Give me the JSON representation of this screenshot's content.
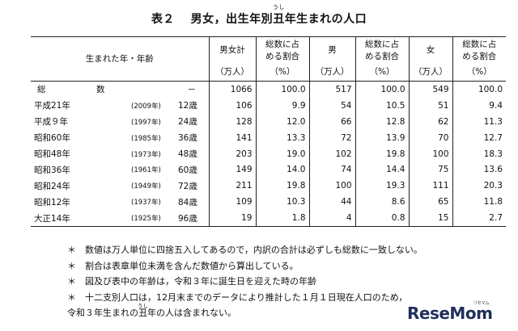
{
  "title": {
    "prefix": "表２　 男女，出生年別",
    "ruby_base": "丑",
    "ruby_text": "うし",
    "suffix": "年生まれの人口"
  },
  "headers": {
    "row_label": "生まれた年・年齢",
    "total_top": "男女計",
    "total_unit": "（万人）",
    "share_top": "総数に占\nめる割合",
    "share_unit": "（%）",
    "male_top": "男",
    "male_unit": "（万人）",
    "female_top": "女",
    "female_unit": "（万人）"
  },
  "total_row": {
    "label": "総　数",
    "age": "－",
    "total": "1066",
    "total_pct": "100.0",
    "male": "517",
    "male_pct": "100.0",
    "female": "549",
    "female_pct": "100.0"
  },
  "rows": [
    {
      "era": "平成21年",
      "year": "(2009年)",
      "age": "12歳",
      "total": "106",
      "total_pct": "9.9",
      "male": "54",
      "male_pct": "10.5",
      "female": "51",
      "female_pct": "9.4"
    },
    {
      "era": "平成９年",
      "year": "(1997年)",
      "age": "24歳",
      "total": "128",
      "total_pct": "12.0",
      "male": "66",
      "male_pct": "12.8",
      "female": "62",
      "female_pct": "11.3"
    },
    {
      "era": "昭和60年",
      "year": "(1985年)",
      "age": "36歳",
      "total": "141",
      "total_pct": "13.3",
      "male": "72",
      "male_pct": "13.9",
      "female": "70",
      "female_pct": "12.7"
    },
    {
      "era": "昭和48年",
      "year": "(1973年)",
      "age": "48歳",
      "total": "203",
      "total_pct": "19.0",
      "male": "102",
      "male_pct": "19.8",
      "female": "100",
      "female_pct": "18.3"
    },
    {
      "era": "昭和36年",
      "year": "(1961年)",
      "age": "60歳",
      "total": "149",
      "total_pct": "14.0",
      "male": "74",
      "male_pct": "14.4",
      "female": "75",
      "female_pct": "13.6"
    },
    {
      "era": "昭和24年",
      "year": "(1949年)",
      "age": "72歳",
      "total": "211",
      "total_pct": "19.8",
      "male": "100",
      "male_pct": "19.3",
      "female": "111",
      "female_pct": "20.3"
    },
    {
      "era": "昭和12年",
      "year": "(1937年)",
      "age": "84歳",
      "total": "109",
      "total_pct": "10.3",
      "male": "44",
      "male_pct": "8.6",
      "female": "65",
      "female_pct": "11.8"
    },
    {
      "era": "大正14年",
      "year": "(1925年)",
      "age": "96歳",
      "total": "19",
      "total_pct": "1.8",
      "male": "4",
      "male_pct": "0.8",
      "female": "15",
      "female_pct": "2.7"
    }
  ],
  "notes": {
    "marker": "＊",
    "n1": "数値は万人単位に四捨五入してあるので，内訳の合計は必ずしも総数に一致しない。",
    "n2": "割合は表章単位未満を含んだ数値から算出している。",
    "n3": "図及び表中の年齢は，令和３年に誕生日を迎えた時の年齢",
    "n4": "十二支別人口は，12月末までのデータにより推計した１月１日現在人口のため，",
    "n4_cont_prefix": "令和３年生まれの",
    "n4_cont_ruby_base": "丑",
    "n4_cont_ruby_text": "うし",
    "n4_cont_suffix": "年の人は含まれない。"
  },
  "logo": {
    "text": "ReseMom",
    "sub": "リセマム"
  }
}
